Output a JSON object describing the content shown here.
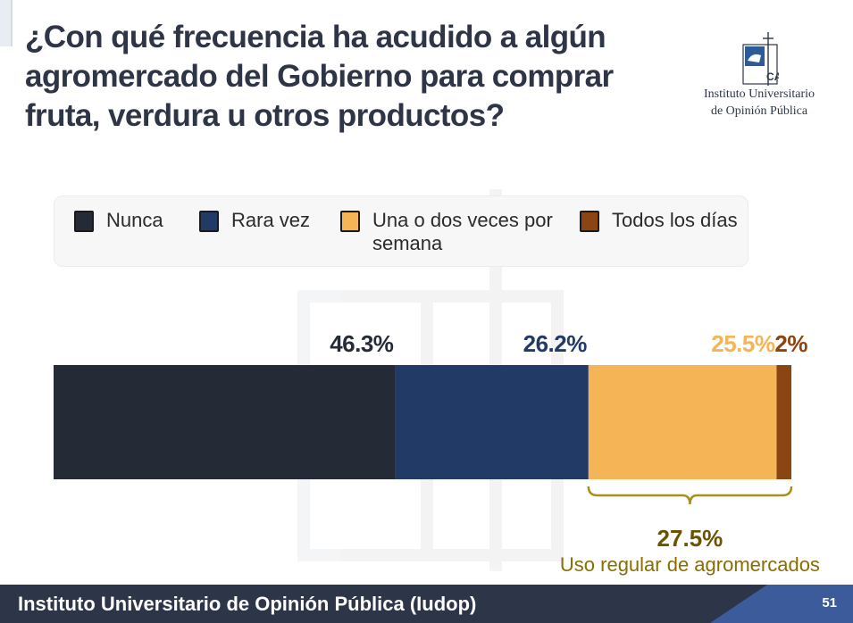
{
  "slide": {
    "title": "¿Con qué frecuencia ha acudido a algún agromercado del Gobierno para comprar fruta, verdura u otros productos?",
    "logo_text_1": "Instituto Universitario",
    "logo_text_2": "de Opinión Pública",
    "footer_text": "Instituto Universitario de Opinión Pública (Iudop)",
    "page_number": "51"
  },
  "chart_data": {
    "type": "bar",
    "orientation": "horizontal-stacked-100",
    "categories": [
      "Nunca",
      "Rara vez",
      "Una o dos veces por semana",
      "Todos los días"
    ],
    "values": [
      46.3,
      26.2,
      25.5,
      2
    ],
    "value_labels": [
      "46.3%",
      "26.2%",
      "25.5%",
      "2%"
    ],
    "colors": [
      "#252b36",
      "#223a66",
      "#f5b455",
      "#8b4513"
    ],
    "legend_position": "top",
    "xlim": [
      0,
      100
    ],
    "annotation": {
      "value": "27.5%",
      "text": "Uso regular de agromercados",
      "spans_categories": [
        "Una o dos veces por semana",
        "Todos los días"
      ],
      "color": "#6b5300"
    }
  }
}
